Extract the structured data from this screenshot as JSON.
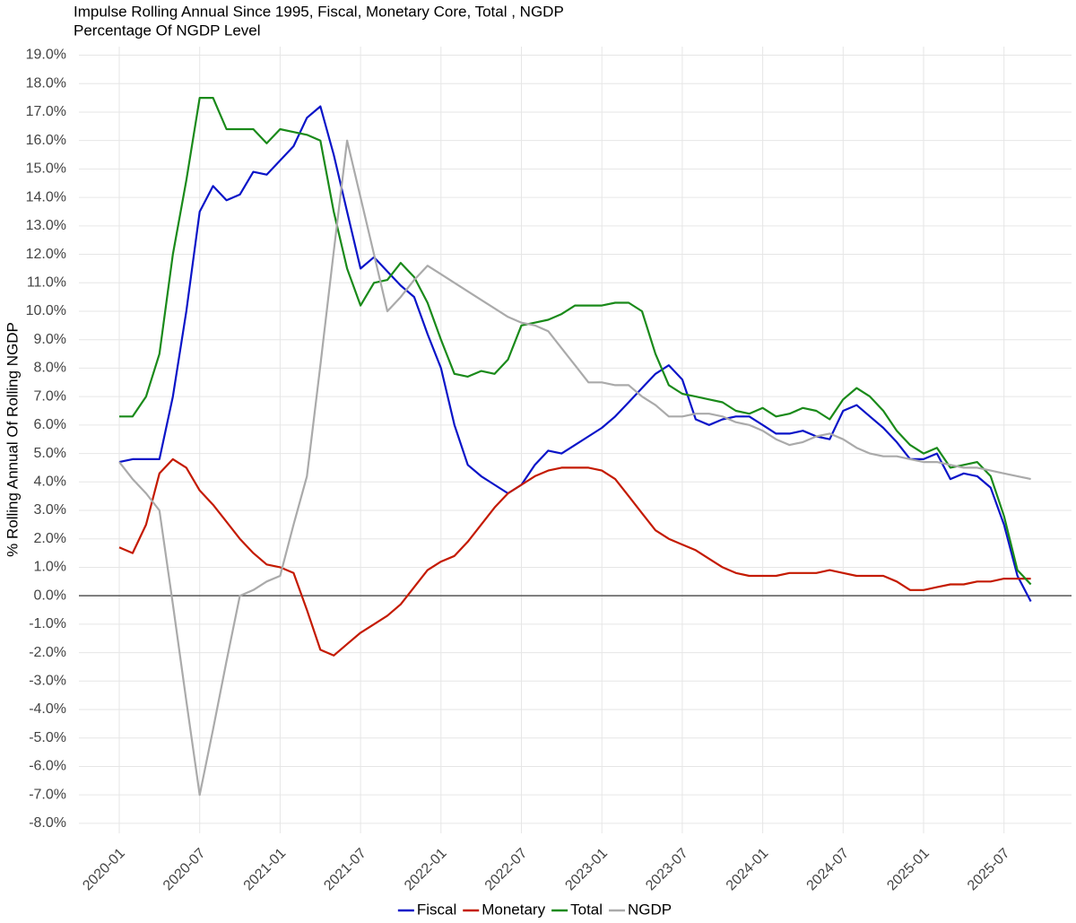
{
  "chart_data": {
    "type": "line",
    "title": "Impulse Rolling Annual Since 1995, Fiscal, Monetary Core,  Total , NGDP",
    "subtitle": "Percentage Of NGDP Level",
    "ylabel": "% Rolling Annual Of Rolling NGDP",
    "x": [
      "2020-01",
      null,
      null,
      null,
      null,
      null,
      "2020-07",
      null,
      null,
      null,
      null,
      null,
      "2021-01",
      null,
      null,
      null,
      null,
      null,
      "2021-07",
      null,
      null,
      null,
      null,
      null,
      "2022-01",
      null,
      null,
      null,
      null,
      null,
      "2022-07",
      null,
      null,
      null,
      null,
      null,
      "2023-01",
      null,
      null,
      null,
      null,
      null,
      "2023-07",
      null,
      null,
      null,
      null,
      null,
      "2024-01",
      null,
      null,
      null,
      null,
      null,
      "2024-07",
      null,
      null,
      null,
      null,
      null,
      "2025-01",
      null,
      null,
      null,
      null,
      null,
      "2025-07",
      null,
      null
    ],
    "series": [
      {
        "name": "Fiscal",
        "color": "#0a14c8",
        "values": [
          4.7,
          4.8,
          4.8,
          4.8,
          7.0,
          10.0,
          13.5,
          14.4,
          13.9,
          14.1,
          14.9,
          14.8,
          15.3,
          15.8,
          16.8,
          17.2,
          15.5,
          13.5,
          11.5,
          11.9,
          11.4,
          10.9,
          10.5,
          9.2,
          8.0,
          6.0,
          4.6,
          4.2,
          3.9,
          3.6,
          3.9,
          4.6,
          5.1,
          5.0,
          5.3,
          5.6,
          5.9,
          6.3,
          6.8,
          7.3,
          7.8,
          8.1,
          7.6,
          6.2,
          6.0,
          6.2,
          6.3,
          6.3,
          6.0,
          5.7,
          5.7,
          5.8,
          5.6,
          5.5,
          6.5,
          6.7,
          6.3,
          5.9,
          5.4,
          4.8,
          4.8,
          5.0,
          4.1,
          4.3,
          4.2,
          3.8,
          2.5,
          0.7,
          -0.2
        ]
      },
      {
        "name": "Monetary",
        "color": "#c41a00",
        "values": [
          1.7,
          1.5,
          2.5,
          4.3,
          4.8,
          4.5,
          3.7,
          3.2,
          2.6,
          2.0,
          1.5,
          1.1,
          1.0,
          0.8,
          -0.5,
          -1.9,
          -2.1,
          -1.7,
          -1.3,
          -1.0,
          -0.7,
          -0.3,
          0.3,
          0.9,
          1.2,
          1.4,
          1.9,
          2.5,
          3.1,
          3.6,
          3.9,
          4.2,
          4.4,
          4.5,
          4.5,
          4.5,
          4.4,
          4.1,
          3.5,
          2.9,
          2.3,
          2.0,
          1.8,
          1.6,
          1.3,
          1.0,
          0.8,
          0.7,
          0.7,
          0.7,
          0.8,
          0.8,
          0.8,
          0.9,
          0.8,
          0.7,
          0.7,
          0.7,
          0.5,
          0.2,
          0.2,
          0.3,
          0.4,
          0.4,
          0.5,
          0.5,
          0.6,
          0.6,
          0.6
        ]
      },
      {
        "name": "Total",
        "color": "#1a8a1a",
        "values": [
          6.3,
          6.3,
          7.0,
          8.5,
          12.0,
          14.6,
          17.5,
          17.5,
          16.4,
          16.4,
          16.4,
          15.9,
          16.4,
          16.3,
          16.2,
          16.0,
          13.5,
          11.5,
          10.2,
          11.0,
          11.1,
          11.7,
          11.2,
          10.3,
          9.0,
          7.8,
          7.7,
          7.9,
          7.8,
          8.3,
          9.5,
          9.6,
          9.7,
          9.9,
          10.2,
          10.2,
          10.2,
          10.3,
          10.3,
          10.0,
          8.5,
          7.4,
          7.1,
          7.0,
          6.9,
          6.8,
          6.5,
          6.4,
          6.6,
          6.3,
          6.4,
          6.6,
          6.5,
          6.2,
          6.9,
          7.3,
          7.0,
          6.5,
          5.8,
          5.3,
          5.0,
          5.2,
          4.5,
          4.6,
          4.7,
          4.2,
          2.8,
          0.9,
          0.4
        ]
      },
      {
        "name": "NGDP",
        "color": "#aaaaaa",
        "values": [
          4.7,
          4.1,
          3.6,
          3.0,
          -0.3,
          -3.7,
          -7.0,
          -4.7,
          -2.3,
          0.0,
          0.2,
          0.5,
          0.7,
          2.5,
          4.2,
          8.1,
          12.1,
          16.0,
          14.0,
          12.0,
          10.0,
          10.5,
          11.1,
          11.6,
          11.3,
          11.0,
          10.7,
          10.4,
          10.1,
          9.8,
          9.6,
          9.5,
          9.3,
          8.7,
          8.1,
          7.5,
          7.5,
          7.4,
          7.4,
          7.0,
          6.7,
          6.3,
          6.3,
          6.4,
          6.4,
          6.3,
          6.1,
          6.0,
          5.8,
          5.5,
          5.3,
          5.4,
          5.6,
          5.7,
          5.5,
          5.2,
          5.0,
          4.9,
          4.9,
          4.8,
          4.7,
          4.7,
          4.6,
          4.5,
          4.5,
          4.4,
          4.3,
          4.2,
          4.1
        ]
      }
    ],
    "ylim": [
      -8.35,
      19.3
    ],
    "yticks": [
      {
        "value": -8,
        "label": "-8.0%"
      },
      {
        "value": -7,
        "label": "-7.0%"
      },
      {
        "value": -6,
        "label": "-6.0%"
      },
      {
        "value": -5,
        "label": "-5.0%"
      },
      {
        "value": -4,
        "label": "-4.0%"
      },
      {
        "value": -3,
        "label": "-3.0%"
      },
      {
        "value": -2,
        "label": "-2.0%"
      },
      {
        "value": -1,
        "label": "-1.0%"
      },
      {
        "value": 0,
        "label": "0.0%"
      },
      {
        "value": 1,
        "label": "1.0%"
      },
      {
        "value": 2,
        "label": "2.0%"
      },
      {
        "value": 3,
        "label": "3.0%"
      },
      {
        "value": 4,
        "label": "4.0%"
      },
      {
        "value": 5,
        "label": "5.0%"
      },
      {
        "value": 6,
        "label": "6.0%"
      },
      {
        "value": 7,
        "label": "7.0%"
      },
      {
        "value": 8,
        "label": "8.0%"
      },
      {
        "value": 9,
        "label": "9.0%"
      },
      {
        "value": 10,
        "label": "10.0%"
      },
      {
        "value": 11,
        "label": "11.0%"
      },
      {
        "value": 12,
        "label": "12.0%"
      },
      {
        "value": 13,
        "label": "13.0%"
      },
      {
        "value": 14,
        "label": "14.0%"
      },
      {
        "value": 15,
        "label": "15.0%"
      },
      {
        "value": 16,
        "label": "16.0%"
      },
      {
        "value": 17,
        "label": "17.0%"
      },
      {
        "value": 18,
        "label": "18.0%"
      },
      {
        "value": 19,
        "label": "19.0%"
      }
    ],
    "grid": true,
    "legend": "bottom"
  }
}
